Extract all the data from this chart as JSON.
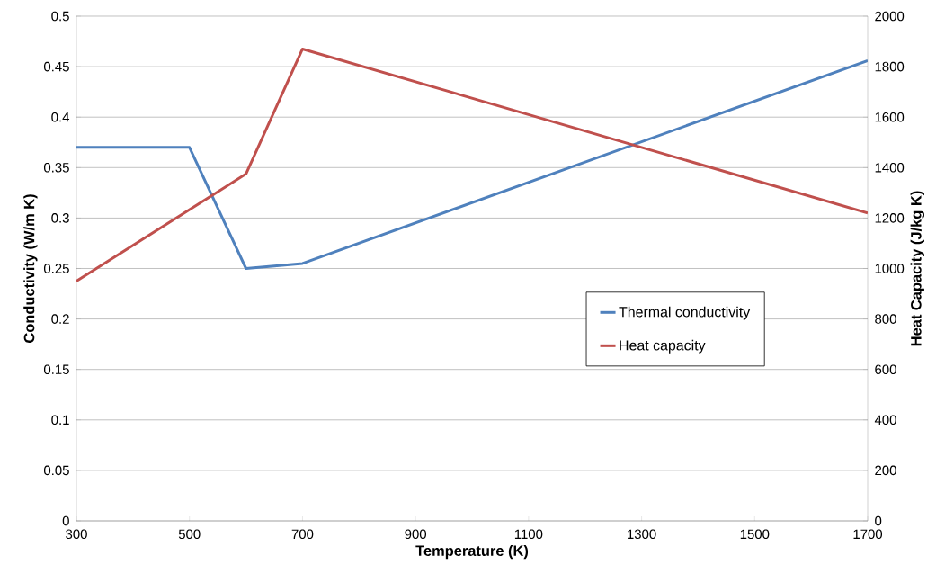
{
  "chart_data": {
    "type": "line",
    "xlabel": "Temperature (K)",
    "ylabel": "Conductivity (W/m K)",
    "y2label": "Heat Capacity (J/kg K)",
    "series": [
      {
        "name": "Thermal conductivity",
        "color": "#4f81bd",
        "x": [
          300,
          500,
          600,
          700,
          1700
        ],
        "values": [
          0.37,
          0.37,
          0.25,
          0.255,
          0.456
        ]
      },
      {
        "name": "Heat capacity",
        "color": "#c0504d",
        "axis": "y2",
        "x": [
          300,
          600,
          700,
          1700
        ],
        "values": [
          950,
          1375,
          1870,
          1220
        ]
      }
    ],
    "xlim": [
      300,
      1700
    ],
    "xticks": [
      300,
      500,
      700,
      900,
      1100,
      1300,
      1500,
      1700
    ],
    "ylim": [
      0,
      0.5
    ],
    "yticks": [
      0,
      0.05,
      0.1,
      0.15,
      0.2,
      0.25,
      0.3,
      0.35,
      0.4,
      0.45,
      0.5
    ],
    "y2lim": [
      0,
      2000
    ],
    "y2ticks": [
      0,
      200,
      400,
      600,
      800,
      1000,
      1200,
      1400,
      1600,
      1800,
      2000
    ],
    "grid": "y",
    "legend": "right",
    "marker": "none",
    "line_style": "solid"
  }
}
